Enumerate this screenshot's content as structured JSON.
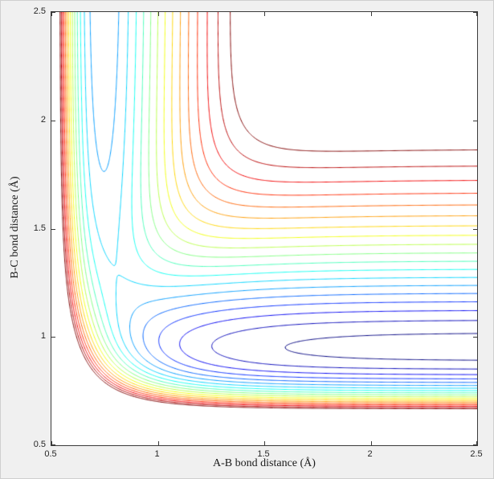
{
  "window": {
    "background": "#f0f0f0",
    "border": "#cfcfcf"
  },
  "chart_data": {
    "type": "contour",
    "title": "",
    "xlabel": "A-B bond distance (Å)",
    "ylabel": "B-C bond distance (Å)",
    "xlim": [
      0.5,
      2.5
    ],
    "ylim": [
      0.5,
      2.5
    ],
    "xticks": [
      0.5,
      1,
      1.5,
      2,
      2.5
    ],
    "xtick_labels": [
      "0.5",
      "1",
      "1.5",
      "2",
      "2.5"
    ],
    "yticks": [
      0.5,
      1,
      1.5,
      2,
      2.5
    ],
    "ytick_labels": [
      "0.5",
      "1",
      "1.5",
      "2",
      "2.5"
    ],
    "grid": false,
    "legend": false,
    "colormap": "jet",
    "n_levels": 19,
    "levels": [
      -6.0,
      -5.75,
      -5.5,
      -5.25,
      -5.0,
      -4.75,
      -4.5,
      -4.25,
      -4.0,
      -3.75,
      -3.5,
      -3.25,
      -3.0,
      -2.75,
      -2.5,
      -2.25,
      -2.0,
      -1.75,
      -1.5
    ],
    "line_width": 1,
    "axis_color": "#262626",
    "plot_background": "#ffffff",
    "surface": {
      "description": "Potential energy surface V(rAB, rBC) of a collinear A-B-C reaction; deep horizontal valley = A + B-C reactant channel (rBC ≈ 0.95 Å), vertical channel = A-B + C product channel (rAB ≈ 0.74 Å); contour energies relative to three separated atoms",
      "model": "LEPS",
      "sato_parameter": 0,
      "r_AC_rule": "rAC = rAB + rBC (collinear)",
      "pairs": {
        "AB": {
          "D": 5.0,
          "a": 3.0,
          "re": 0.742
        },
        "BC": {
          "D": 6.121,
          "a": 2.219,
          "re": 0.95
        },
        "AC": {
          "D": 6.121,
          "a": 2.8,
          "re": 0.95
        }
      },
      "grid_n": 500
    }
  }
}
